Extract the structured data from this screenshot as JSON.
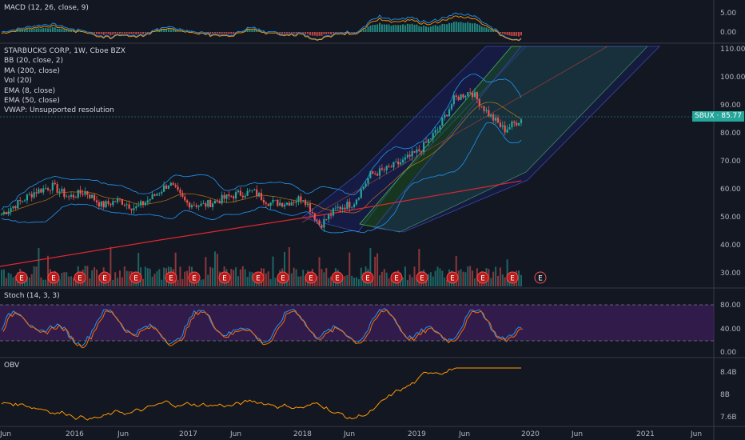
{
  "panes": {
    "macd": {
      "label": "MACD (12, 26, close, 9)",
      "ticks": [
        "5.00",
        "0.00"
      ]
    },
    "main": {
      "legend": [
        "STARBUCKS CORP, 1W, Cboe BZX",
        "BB (20, close, 2)",
        "MA (200, close)",
        "Vol (20)",
        "EMA (8, close)",
        "EMA (50, close)",
        "VWAP: Unsupported resolution"
      ],
      "ticks": [
        "110.00",
        "100.00",
        "90.00",
        "80.00",
        "70.00",
        "60.00",
        "50.00",
        "40.00",
        "30.00"
      ],
      "price_tag": "SBUX · 85.77",
      "earnings_marker": "E"
    },
    "stoch": {
      "label": "Stoch (14, 3, 3)",
      "ticks": [
        "80.00",
        "40.00",
        "0.00"
      ]
    },
    "obv": {
      "label": "OBV",
      "ticks": [
        "8.4B",
        "8B",
        "7.6B"
      ]
    }
  },
  "time_axis": [
    "Jun",
    "2016",
    "Jun",
    "2017",
    "Jun",
    "2018",
    "Jun",
    "2019",
    "Jun",
    "2020",
    "Jun",
    "2021",
    "Jun"
  ],
  "colors": {
    "background": "#131722",
    "up": "#26a69a",
    "down": "#ef5350",
    "ma200": "#e0262e",
    "bb": "#2196f3",
    "orange": "#ff9800",
    "stoch_band": "#4a1f6b",
    "price_line": "#26a69a"
  },
  "chart_data": {
    "type": "line",
    "title": "STARBUCKS CORP, 1W, Cboe BZX",
    "last_close": 85.77,
    "ylim": [
      28,
      111
    ],
    "x_labels": [
      "Jun",
      "2016",
      "Jun",
      "2017",
      "Jun",
      "2018",
      "Jun",
      "2019",
      "Jun",
      "2020",
      "Jun",
      "2021",
      "Jun"
    ],
    "series": [
      {
        "values": [
          52,
          56,
          60,
          62,
          58,
          60,
          55,
          57,
          54,
          58,
          63,
          56,
          55,
          57,
          59,
          60,
          56,
          56,
          58,
          48,
          54,
          56,
          66,
          68,
          71,
          75,
          82,
          93,
          96,
          88,
          82,
          86
        ]
      }
    ]
  }
}
